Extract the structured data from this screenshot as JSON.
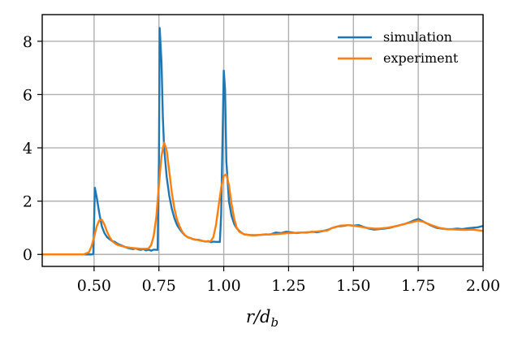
{
  "chart_data": {
    "type": "line",
    "xlabel": "r/d_b",
    "xlabel_parts": {
      "main": "r/d",
      "sub": "b"
    },
    "ylabel": "",
    "xlim": [
      0.3,
      2.0
    ],
    "ylim": [
      -0.45,
      9.0
    ],
    "grid": true,
    "legend_position": "top-right",
    "x_ticks": [
      0.5,
      0.75,
      1.0,
      1.25,
      1.5,
      1.75,
      2.0
    ],
    "x_tick_labels": [
      "0.50",
      "0.75",
      "1.00",
      "1.25",
      "1.50",
      "1.75",
      "2.00"
    ],
    "y_ticks": [
      0,
      2,
      4,
      6,
      8
    ],
    "y_tick_labels": [
      "0",
      "2",
      "4",
      "6",
      "8"
    ],
    "series": [
      {
        "name": "simulation",
        "color": "#1f77b4",
        "points": [
          [
            0.3,
            0
          ],
          [
            0.4,
            0
          ],
          [
            0.49,
            0
          ],
          [
            0.497,
            0.01
          ],
          [
            0.5,
            1.2
          ],
          [
            0.503,
            2.5
          ],
          [
            0.51,
            2.15
          ],
          [
            0.52,
            1.55
          ],
          [
            0.53,
            1.05
          ],
          [
            0.54,
            0.8
          ],
          [
            0.55,
            0.65
          ],
          [
            0.56,
            0.57
          ],
          [
            0.57,
            0.5
          ],
          [
            0.58,
            0.47
          ],
          [
            0.59,
            0.4
          ],
          [
            0.6,
            0.36
          ],
          [
            0.61,
            0.32
          ],
          [
            0.62,
            0.28
          ],
          [
            0.63,
            0.24
          ],
          [
            0.64,
            0.22
          ],
          [
            0.65,
            0.2
          ],
          [
            0.66,
            0.23
          ],
          [
            0.67,
            0.19
          ],
          [
            0.68,
            0.17
          ],
          [
            0.69,
            0.2
          ],
          [
            0.7,
            0.15
          ],
          [
            0.71,
            0.18
          ],
          [
            0.72,
            0.14
          ],
          [
            0.73,
            0.18
          ],
          [
            0.745,
            0.17
          ],
          [
            0.75,
            3.5
          ],
          [
            0.753,
            8.5
          ],
          [
            0.76,
            7.2
          ],
          [
            0.765,
            5.2
          ],
          [
            0.77,
            4.0
          ],
          [
            0.78,
            2.9
          ],
          [
            0.79,
            2.2
          ],
          [
            0.8,
            1.7
          ],
          [
            0.81,
            1.35
          ],
          [
            0.82,
            1.1
          ],
          [
            0.83,
            0.95
          ],
          [
            0.84,
            0.82
          ],
          [
            0.85,
            0.72
          ],
          [
            0.86,
            0.65
          ],
          [
            0.87,
            0.62
          ],
          [
            0.88,
            0.58
          ],
          [
            0.89,
            0.55
          ],
          [
            0.9,
            0.55
          ],
          [
            0.91,
            0.53
          ],
          [
            0.92,
            0.5
          ],
          [
            0.93,
            0.48
          ],
          [
            0.94,
            0.5
          ],
          [
            0.95,
            0.46
          ],
          [
            0.96,
            0.48
          ],
          [
            0.97,
            0.47
          ],
          [
            0.985,
            0.47
          ],
          [
            0.99,
            1.5
          ],
          [
            1.0,
            6.9
          ],
          [
            1.005,
            6.2
          ],
          [
            1.01,
            3.5
          ],
          [
            1.02,
            2.0
          ],
          [
            1.03,
            1.45
          ],
          [
            1.04,
            1.15
          ],
          [
            1.05,
            0.98
          ],
          [
            1.06,
            0.88
          ],
          [
            1.07,
            0.8
          ],
          [
            1.08,
            0.75
          ],
          [
            1.1,
            0.73
          ],
          [
            1.12,
            0.72
          ],
          [
            1.14,
            0.73
          ],
          [
            1.16,
            0.75
          ],
          [
            1.18,
            0.75
          ],
          [
            1.2,
            0.82
          ],
          [
            1.22,
            0.8
          ],
          [
            1.24,
            0.85
          ],
          [
            1.26,
            0.83
          ],
          [
            1.28,
            0.8
          ],
          [
            1.3,
            0.82
          ],
          [
            1.32,
            0.82
          ],
          [
            1.34,
            0.85
          ],
          [
            1.36,
            0.83
          ],
          [
            1.38,
            0.87
          ],
          [
            1.4,
            0.92
          ],
          [
            1.42,
            1.0
          ],
          [
            1.44,
            1.05
          ],
          [
            1.46,
            1.07
          ],
          [
            1.48,
            1.1
          ],
          [
            1.5,
            1.08
          ],
          [
            1.52,
            1.1
          ],
          [
            1.54,
            1.03
          ],
          [
            1.56,
            0.97
          ],
          [
            1.58,
            0.93
          ],
          [
            1.6,
            0.95
          ],
          [
            1.62,
            0.97
          ],
          [
            1.64,
            1.0
          ],
          [
            1.66,
            1.05
          ],
          [
            1.68,
            1.1
          ],
          [
            1.7,
            1.15
          ],
          [
            1.72,
            1.22
          ],
          [
            1.74,
            1.3
          ],
          [
            1.75,
            1.33
          ],
          [
            1.76,
            1.28
          ],
          [
            1.78,
            1.18
          ],
          [
            1.8,
            1.08
          ],
          [
            1.82,
            1.0
          ],
          [
            1.84,
            0.97
          ],
          [
            1.86,
            0.95
          ],
          [
            1.88,
            0.95
          ],
          [
            1.9,
            0.97
          ],
          [
            1.92,
            0.95
          ],
          [
            1.94,
            0.98
          ],
          [
            1.96,
            1.0
          ],
          [
            1.98,
            1.02
          ],
          [
            2.0,
            1.07
          ]
        ]
      },
      {
        "name": "experiment",
        "color": "#ff7f0e",
        "points": [
          [
            0.3,
            0
          ],
          [
            0.4,
            0
          ],
          [
            0.46,
            0
          ],
          [
            0.48,
            0.08
          ],
          [
            0.49,
            0.3
          ],
          [
            0.5,
            0.65
          ],
          [
            0.51,
            1.05
          ],
          [
            0.52,
            1.28
          ],
          [
            0.53,
            1.3
          ],
          [
            0.54,
            1.12
          ],
          [
            0.55,
            0.85
          ],
          [
            0.56,
            0.65
          ],
          [
            0.57,
            0.5
          ],
          [
            0.58,
            0.42
          ],
          [
            0.59,
            0.36
          ],
          [
            0.6,
            0.33
          ],
          [
            0.62,
            0.28
          ],
          [
            0.64,
            0.25
          ],
          [
            0.66,
            0.23
          ],
          [
            0.68,
            0.21
          ],
          [
            0.7,
            0.21
          ],
          [
            0.71,
            0.22
          ],
          [
            0.72,
            0.35
          ],
          [
            0.73,
            0.7
          ],
          [
            0.74,
            1.4
          ],
          [
            0.75,
            2.6
          ],
          [
            0.76,
            3.7
          ],
          [
            0.77,
            4.2
          ],
          [
            0.78,
            3.9
          ],
          [
            0.79,
            3.1
          ],
          [
            0.8,
            2.3
          ],
          [
            0.81,
            1.7
          ],
          [
            0.82,
            1.3
          ],
          [
            0.83,
            1.05
          ],
          [
            0.84,
            0.85
          ],
          [
            0.85,
            0.72
          ],
          [
            0.86,
            0.65
          ],
          [
            0.88,
            0.58
          ],
          [
            0.9,
            0.54
          ],
          [
            0.92,
            0.5
          ],
          [
            0.94,
            0.48
          ],
          [
            0.95,
            0.5
          ],
          [
            0.96,
            0.65
          ],
          [
            0.97,
            1.1
          ],
          [
            0.98,
            1.8
          ],
          [
            0.99,
            2.5
          ],
          [
            1.0,
            2.95
          ],
          [
            1.01,
            3.0
          ],
          [
            1.02,
            2.6
          ],
          [
            1.03,
            1.9
          ],
          [
            1.04,
            1.35
          ],
          [
            1.05,
            1.0
          ],
          [
            1.06,
            0.85
          ],
          [
            1.08,
            0.75
          ],
          [
            1.1,
            0.72
          ],
          [
            1.12,
            0.72
          ],
          [
            1.15,
            0.74
          ],
          [
            1.2,
            0.76
          ],
          [
            1.25,
            0.8
          ],
          [
            1.3,
            0.82
          ],
          [
            1.35,
            0.85
          ],
          [
            1.4,
            0.9
          ],
          [
            1.42,
            1.0
          ],
          [
            1.45,
            1.08
          ],
          [
            1.48,
            1.1
          ],
          [
            1.5,
            1.08
          ],
          [
            1.52,
            1.05
          ],
          [
            1.55,
            1.0
          ],
          [
            1.58,
            0.97
          ],
          [
            1.6,
            0.97
          ],
          [
            1.63,
            1.0
          ],
          [
            1.66,
            1.05
          ],
          [
            1.7,
            1.15
          ],
          [
            1.73,
            1.22
          ],
          [
            1.75,
            1.27
          ],
          [
            1.77,
            1.22
          ],
          [
            1.8,
            1.1
          ],
          [
            1.83,
            1.0
          ],
          [
            1.86,
            0.95
          ],
          [
            1.9,
            0.93
          ],
          [
            1.93,
            0.92
          ],
          [
            1.96,
            0.93
          ],
          [
            2.0,
            0.88
          ]
        ]
      }
    ]
  }
}
